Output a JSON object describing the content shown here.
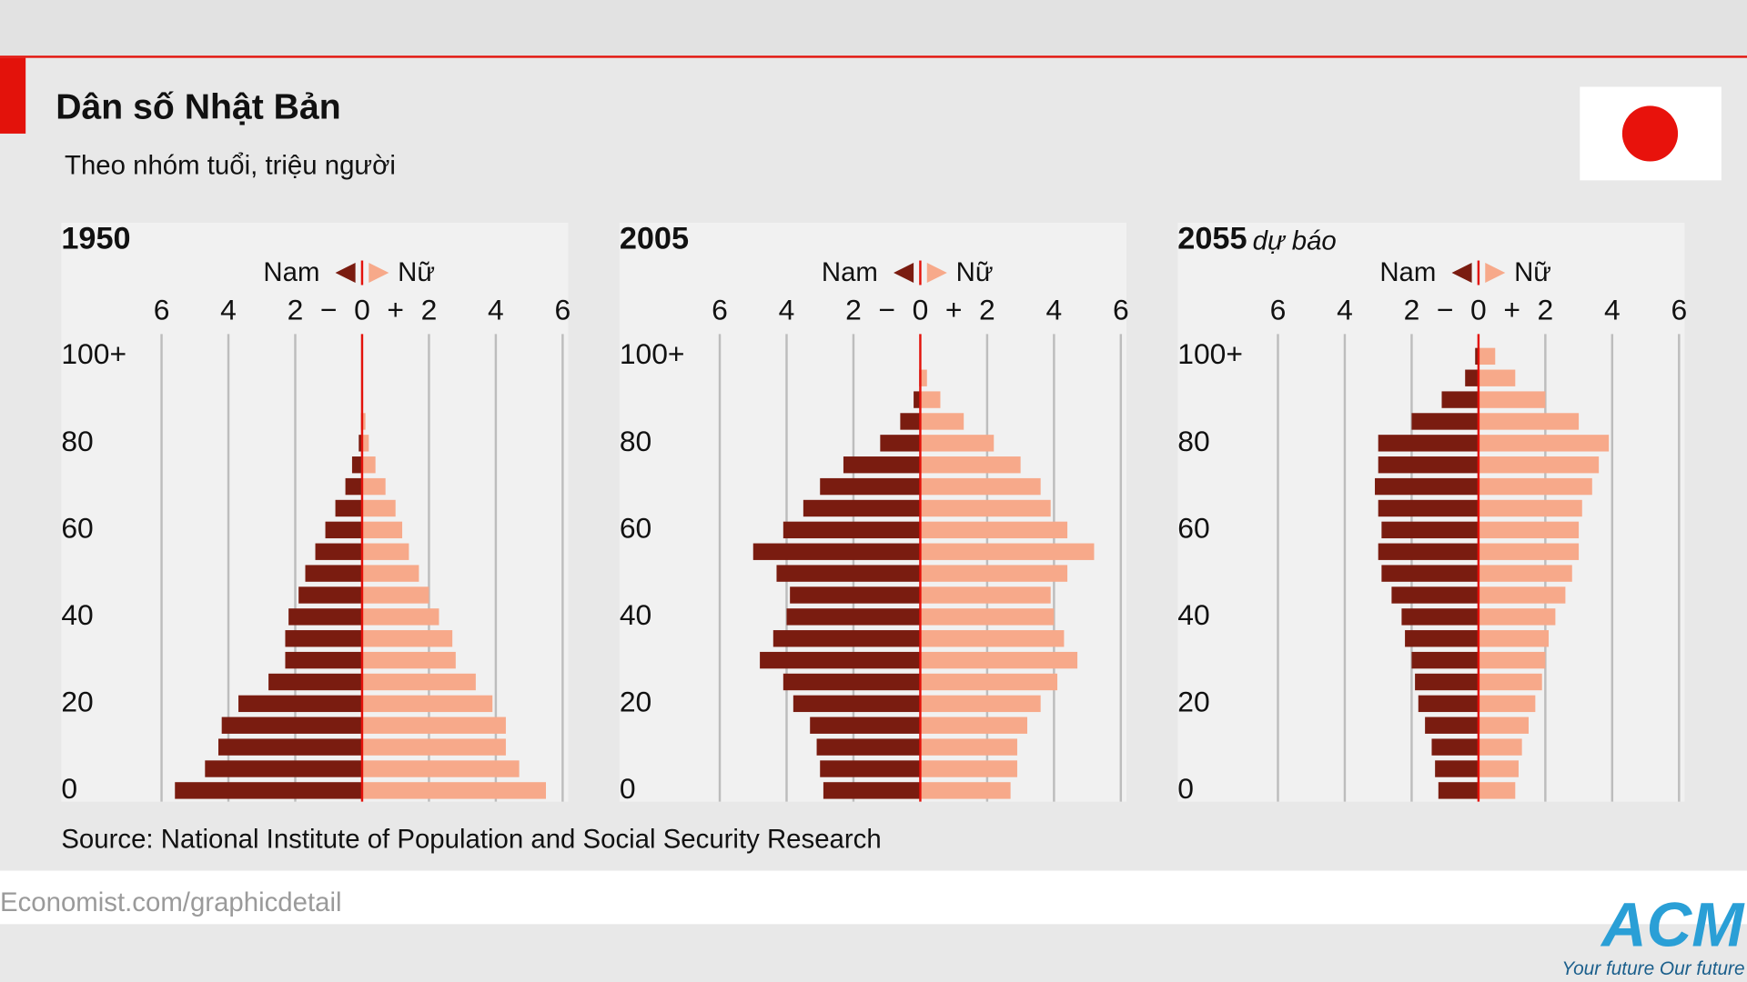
{
  "header": {
    "title": "Dân số Nhật Bản",
    "subtitle": "Theo nhóm tuổi, triệu người"
  },
  "chart_data": [
    {
      "type": "pyramid",
      "title": "1950",
      "categories": [
        "0",
        null,
        null,
        null,
        "20",
        null,
        null,
        null,
        "40",
        null,
        null,
        null,
        "60",
        null,
        null,
        null,
        "80",
        null,
        null,
        null,
        "100+"
      ],
      "series": [
        {
          "name": "Nam",
          "color": "#7a1c10",
          "values": [
            5.6,
            4.7,
            4.3,
            4.2,
            3.7,
            2.8,
            2.3,
            2.3,
            2.2,
            1.9,
            1.7,
            1.4,
            1.1,
            0.8,
            0.5,
            0.3,
            0.1,
            0.03,
            0,
            0,
            0
          ]
        },
        {
          "name": "Nữ",
          "color": "#f7a98a",
          "values": [
            5.5,
            4.7,
            4.3,
            4.3,
            3.9,
            3.4,
            2.8,
            2.7,
            2.3,
            2.0,
            1.7,
            1.4,
            1.2,
            1.0,
            0.7,
            0.4,
            0.2,
            0.1,
            0.03,
            0,
            0
          ]
        }
      ],
      "xlim": [
        -6,
        6
      ],
      "xticks": [
        {
          "value": -6,
          "label": "6"
        },
        {
          "value": -4,
          "label": "4"
        },
        {
          "value": -2,
          "label": "2"
        },
        0,
        2,
        4,
        6
      ],
      "x_signs": [
        "−",
        "+"
      ],
      "grid": true
    },
    {
      "type": "pyramid",
      "title": "2005",
      "categories": [
        "0",
        null,
        null,
        null,
        "20",
        null,
        null,
        null,
        "40",
        null,
        null,
        null,
        "60",
        null,
        null,
        null,
        "80",
        null,
        null,
        null,
        "100+"
      ],
      "series": [
        {
          "name": "Nam",
          "color": "#7a1c10",
          "values": [
            2.9,
            3.0,
            3.1,
            3.3,
            3.8,
            4.1,
            4.8,
            4.4,
            4.0,
            3.9,
            4.3,
            5.0,
            4.1,
            3.5,
            3.0,
            2.3,
            1.2,
            0.6,
            0.2,
            0.03,
            0
          ]
        },
        {
          "name": "Nữ",
          "color": "#f7a98a",
          "values": [
            2.7,
            2.9,
            2.9,
            3.2,
            3.6,
            4.1,
            4.7,
            4.3,
            4.0,
            3.9,
            4.4,
            5.2,
            4.4,
            3.9,
            3.6,
            3.0,
            2.2,
            1.3,
            0.6,
            0.2,
            0.03
          ]
        }
      ],
      "xlim": [
        -6,
        6
      ],
      "xticks": [
        {
          "value": -6,
          "label": "6"
        },
        {
          "value": -4,
          "label": "4"
        },
        {
          "value": -2,
          "label": "2"
        },
        0,
        2,
        4,
        6
      ],
      "x_signs": [
        "−",
        "+"
      ],
      "grid": true
    },
    {
      "type": "pyramid",
      "title": "2055",
      "annotation": "dự báo",
      "categories": [
        "0",
        null,
        null,
        null,
        "20",
        null,
        null,
        null,
        "40",
        null,
        null,
        null,
        "60",
        null,
        null,
        null,
        "80",
        null,
        null,
        null,
        "100+"
      ],
      "series": [
        {
          "name": "Nam",
          "color": "#7a1c10",
          "values": [
            1.2,
            1.3,
            1.4,
            1.6,
            1.8,
            1.9,
            2.0,
            2.2,
            2.3,
            2.6,
            2.9,
            3.0,
            2.9,
            3.0,
            3.1,
            3.0,
            3.0,
            2.0,
            1.1,
            0.4,
            0.1
          ]
        },
        {
          "name": "Nữ",
          "color": "#f7a98a",
          "values": [
            1.1,
            1.2,
            1.3,
            1.5,
            1.7,
            1.9,
            2.0,
            2.1,
            2.3,
            2.6,
            2.8,
            3.0,
            3.0,
            3.1,
            3.4,
            3.6,
            3.9,
            3.0,
            2.0,
            1.1,
            0.5
          ]
        }
      ],
      "xlim": [
        -6,
        6
      ],
      "xticks": [
        {
          "value": -6,
          "label": "6"
        },
        {
          "value": -4,
          "label": "4"
        },
        {
          "value": -2,
          "label": "2"
        },
        0,
        2,
        4,
        6
      ],
      "x_signs": [
        "−",
        "+"
      ],
      "grid": true
    }
  ],
  "source": "Source: National Institute of Population and Social Security Research",
  "footer": {
    "site": "Economist.com/graphicdetail",
    "logo": "ACM",
    "slogan": "Your future Our future"
  }
}
